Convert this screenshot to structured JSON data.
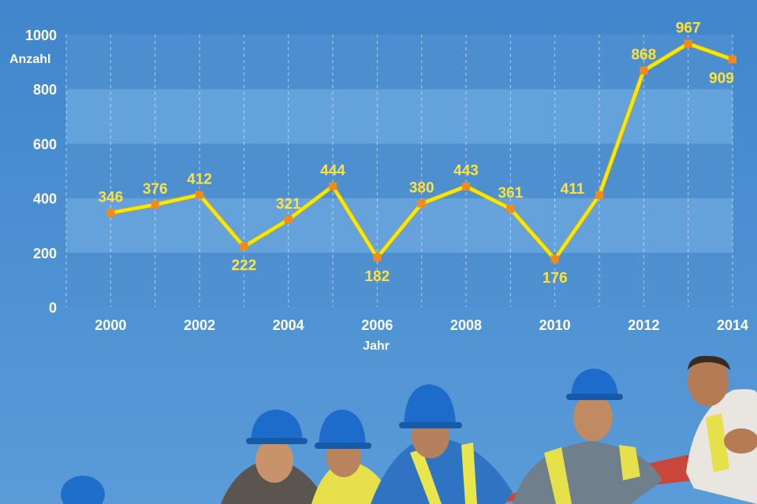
{
  "chart_data": {
    "type": "line",
    "x": [
      2000,
      2001,
      2002,
      2003,
      2004,
      2005,
      2006,
      2007,
      2008,
      2009,
      2010,
      2011,
      2012,
      2013,
      2014
    ],
    "values": [
      346,
      376,
      412,
      222,
      321,
      444,
      182,
      380,
      443,
      361,
      176,
      411,
      868,
      967,
      909
    ],
    "xticks": [
      "2000",
      "2002",
      "2004",
      "2006",
      "2008",
      "2010",
      "2012",
      "2014"
    ],
    "yticks": [
      "0",
      "200",
      "400",
      "600",
      "800",
      "1000"
    ],
    "xlabel": "Jahr",
    "ylabel": "Anzahl",
    "xlim": [
      1999,
      2014
    ],
    "ylim": [
      0,
      1000
    ],
    "grid": true,
    "colors": {
      "line": "#ffe600",
      "marker": "#f08a1c",
      "label": "#ffe23a",
      "band_light": "#6aa6dd",
      "band_dark": "#4f8fcf",
      "background": "#4a8fd0"
    }
  }
}
